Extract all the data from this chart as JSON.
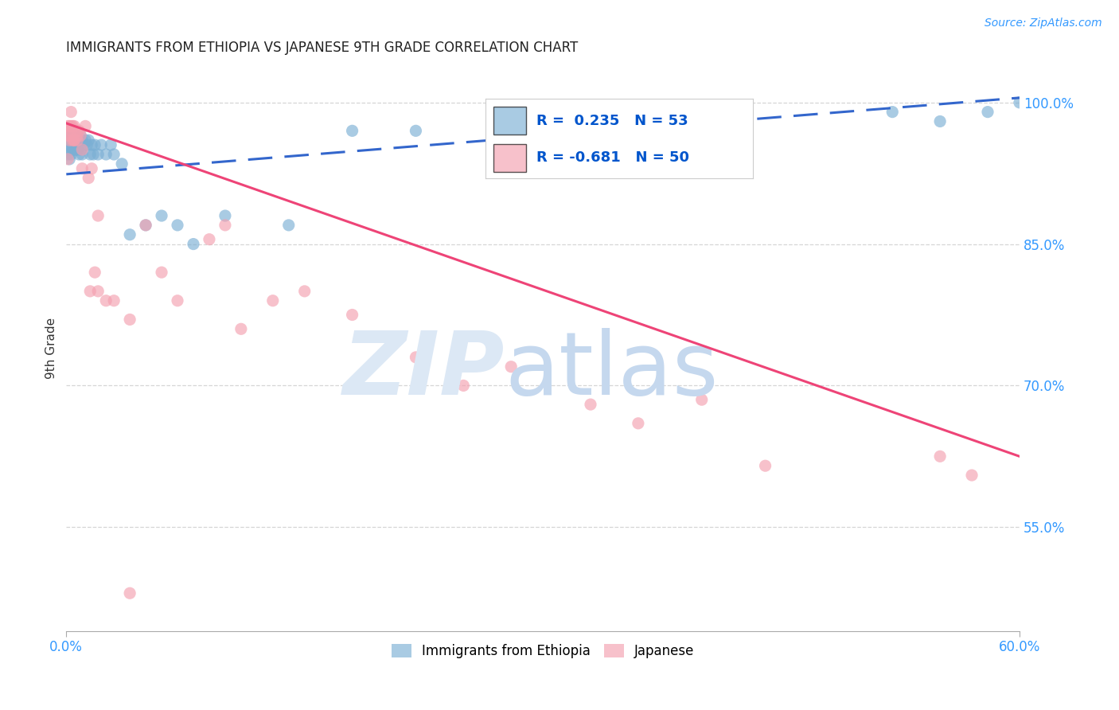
{
  "title": "IMMIGRANTS FROM ETHIOPIA VS JAPANESE 9TH GRADE CORRELATION CHART",
  "source": "Source: ZipAtlas.com",
  "ylabel": "9th Grade",
  "ylabel_right_ticks": [
    "100.0%",
    "85.0%",
    "70.0%",
    "55.0%"
  ],
  "ylabel_right_vals": [
    1.0,
    0.85,
    0.7,
    0.55
  ],
  "xlim": [
    0.0,
    0.6
  ],
  "ylim": [
    0.44,
    1.04
  ],
  "blue_R": 0.235,
  "blue_N": 53,
  "pink_R": -0.681,
  "pink_N": 50,
  "blue_color": "#7BAFD4",
  "pink_color": "#F4A0B0",
  "blue_line_color": "#3366CC",
  "pink_line_color": "#EE4477",
  "legend_R_color": "#0055CC",
  "blue_line_x": [
    0.0,
    0.6
  ],
  "blue_line_y": [
    0.924,
    1.005
  ],
  "pink_line_x": [
    0.0,
    0.6
  ],
  "pink_line_y": [
    0.978,
    0.625
  ],
  "blue_scatter_x": [
    0.001,
    0.001,
    0.001,
    0.002,
    0.002,
    0.002,
    0.003,
    0.003,
    0.003,
    0.004,
    0.004,
    0.005,
    0.005,
    0.006,
    0.006,
    0.007,
    0.007,
    0.008,
    0.008,
    0.009,
    0.009,
    0.01,
    0.01,
    0.011,
    0.012,
    0.013,
    0.014,
    0.015,
    0.016,
    0.017,
    0.018,
    0.02,
    0.022,
    0.025,
    0.028,
    0.03,
    0.035,
    0.04,
    0.05,
    0.06,
    0.07,
    0.08,
    0.1,
    0.14,
    0.18,
    0.22,
    0.28,
    0.35,
    0.42,
    0.52,
    0.55,
    0.58,
    0.6
  ],
  "blue_scatter_y": [
    0.965,
    0.955,
    0.945,
    0.96,
    0.95,
    0.94,
    0.965,
    0.955,
    0.945,
    0.96,
    0.95,
    0.965,
    0.95,
    0.96,
    0.95,
    0.965,
    0.95,
    0.96,
    0.945,
    0.965,
    0.95,
    0.96,
    0.945,
    0.955,
    0.96,
    0.955,
    0.96,
    0.945,
    0.955,
    0.945,
    0.955,
    0.945,
    0.955,
    0.945,
    0.955,
    0.945,
    0.935,
    0.86,
    0.87,
    0.88,
    0.87,
    0.85,
    0.88,
    0.87,
    0.97,
    0.97,
    0.98,
    0.99,
    0.98,
    0.99,
    0.98,
    0.99,
    1.0
  ],
  "pink_scatter_x": [
    0.001,
    0.001,
    0.002,
    0.002,
    0.003,
    0.003,
    0.004,
    0.004,
    0.005,
    0.005,
    0.006,
    0.007,
    0.008,
    0.009,
    0.01,
    0.012,
    0.014,
    0.015,
    0.016,
    0.018,
    0.02,
    0.025,
    0.03,
    0.04,
    0.05,
    0.06,
    0.07,
    0.09,
    0.1,
    0.11,
    0.13,
    0.15,
    0.18,
    0.22,
    0.25,
    0.28,
    0.33,
    0.36,
    0.4,
    0.44,
    0.55,
    0.57,
    0.001,
    0.002,
    0.003,
    0.005,
    0.007,
    0.01,
    0.02,
    0.04
  ],
  "pink_scatter_y": [
    0.975,
    0.965,
    0.975,
    0.965,
    0.975,
    0.99,
    0.975,
    0.96,
    0.975,
    0.96,
    0.97,
    0.965,
    0.97,
    0.965,
    0.93,
    0.975,
    0.92,
    0.8,
    0.93,
    0.82,
    0.88,
    0.79,
    0.79,
    0.77,
    0.87,
    0.82,
    0.79,
    0.855,
    0.87,
    0.76,
    0.79,
    0.8,
    0.775,
    0.73,
    0.7,
    0.72,
    0.68,
    0.66,
    0.685,
    0.615,
    0.625,
    0.605,
    0.94,
    0.96,
    0.97,
    0.96,
    0.96,
    0.95,
    0.8,
    0.48
  ]
}
